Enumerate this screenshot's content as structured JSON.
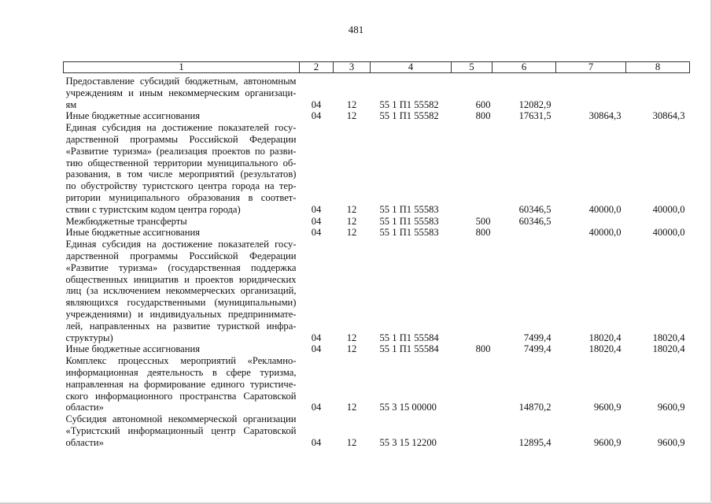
{
  "page_number": "481",
  "headers": [
    "1",
    "2",
    "3",
    "4",
    "5",
    "6",
    "7",
    "8"
  ],
  "rows": [
    {
      "lines": [
        "Предоставление субсидий бюджетным, автономным",
        "учреждениям и иным некоммерческим организаци-",
        "ям"
      ],
      "c2": "04",
      "c3": "12",
      "c4": "55 1 П1 55582",
      "c5": "600",
      "c6": "12082,9",
      "c7": "",
      "c8": ""
    },
    {
      "lines": [
        "Иные бюджетные ассигнования"
      ],
      "c2": "04",
      "c3": "12",
      "c4": "55 1 П1 55582",
      "c5": "800",
      "c6": "17631,5",
      "c7": "30864,3",
      "c8": "30864,3"
    },
    {
      "lines": [
        "Единая субсидия на достижение показателей госу-",
        "дарственной программы Российской Федерации",
        "«Развитие туризма» (реализация проектов по разви-",
        "тию общественной территории муниципального об-",
        "разования, в том числе мероприятий (результатов)",
        "по обустройству туристского центра города на тер-",
        "ритории муниципального образования в соответ-",
        "ствии с туристским кодом центра города)"
      ],
      "c2": "04",
      "c3": "12",
      "c4": "55 1 П1 55583",
      "c5": "",
      "c6": "60346,5",
      "c7": "40000,0",
      "c8": "40000,0"
    },
    {
      "lines": [
        "Межбюджетные трансферты"
      ],
      "c2": "04",
      "c3": "12",
      "c4": "55 1 П1 55583",
      "c5": "500",
      "c6": "60346,5",
      "c7": "",
      "c8": ""
    },
    {
      "lines": [
        "Иные бюджетные ассигнования"
      ],
      "c2": "04",
      "c3": "12",
      "c4": "55 1 П1 55583",
      "c5": "800",
      "c6": "",
      "c7": "40000,0",
      "c8": "40000,0"
    },
    {
      "lines": [
        "Единая субсидия на достижение показателей госу-",
        "дарственной программы Российской Федерации",
        "«Развитие туризма» (государственная поддержка",
        "общественных инициатив и проектов юридических",
        "лиц (за исключением некоммерческих организаций,",
        "являющихся государственными (муниципальными)",
        "учреждениями) и индивидуальных предпринимате-",
        "лей, направленных на развитие туристкой инфра-",
        "структуры)"
      ],
      "c2": "04",
      "c3": "12",
      "c4": "55 1 П1 55584",
      "c5": "",
      "c6": "7499,4",
      "c7": "18020,4",
      "c8": "18020,4"
    },
    {
      "lines": [
        "Иные бюджетные ассигнования"
      ],
      "c2": "04",
      "c3": "12",
      "c4": "55 1 П1 55584",
      "c5": "800",
      "c6": "7499,4",
      "c7": "18020,4",
      "c8": "18020,4"
    },
    {
      "lines": [
        "Комплекс процессных мероприятий «Рекламно-",
        "информационная деятельность в сфере туризма,",
        "направленная на формирование единого туристиче-",
        "ского информационного пространства Саратовской",
        "области»"
      ],
      "c2": "04",
      "c3": "12",
      "c4": "55 3 15 00000",
      "c5": "",
      "c6": "14870,2",
      "c7": "9600,9",
      "c8": "9600,9"
    },
    {
      "lines": [
        "Субсидия автономной некоммерческой организации",
        "«Туристский информационный центр Саратовской",
        "области»"
      ],
      "c2": "04",
      "c3": "12",
      "c4": "55 3 15 12200",
      "c5": "",
      "c6": "12895,4",
      "c7": "9600,9",
      "c8": "9600,9"
    }
  ]
}
